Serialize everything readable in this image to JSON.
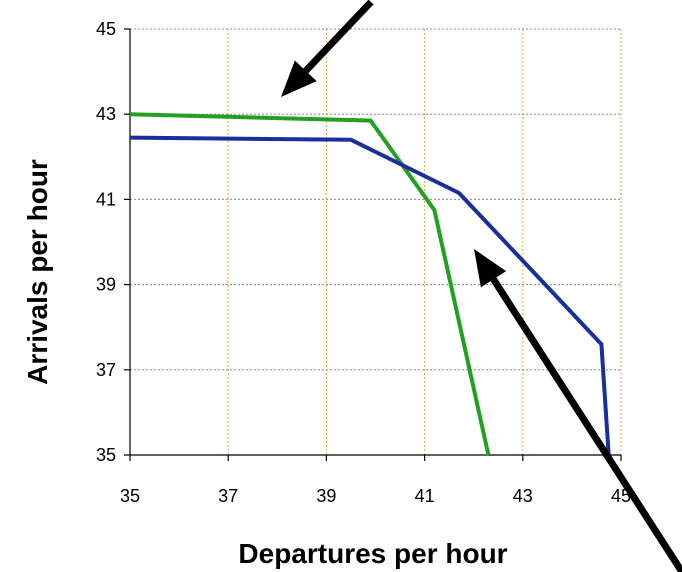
{
  "chart_data": {
    "type": "line",
    "title": "",
    "xlabel": "Departures per hour",
    "ylabel": "Arrivals per hour",
    "xlim": [
      35,
      45
    ],
    "ylim": [
      35,
      45
    ],
    "x_ticks": [
      "35",
      "37",
      "39",
      "41",
      "43",
      "45"
    ],
    "y_ticks": [
      "35",
      "37",
      "39",
      "41",
      "43",
      "45"
    ],
    "grid": true,
    "legend": "none",
    "series": [
      {
        "color": "#22a020",
        "points": [
          [
            35,
            43.0
          ],
          [
            39.9,
            42.85
          ],
          [
            41.2,
            40.75
          ],
          [
            42.3,
            35.0
          ]
        ]
      },
      {
        "color": "#1a2e9c",
        "points": [
          [
            35,
            42.45
          ],
          [
            39.5,
            42.4
          ],
          [
            41.7,
            41.15
          ],
          [
            44.6,
            37.6
          ],
          [
            44.75,
            35.0
          ]
        ]
      }
    ],
    "annotations": [
      {
        "type": "arrow",
        "color": "#000000",
        "target": [
          38.1,
          43.45
        ],
        "direction": "down-left"
      },
      {
        "type": "arrow",
        "color": "#000000",
        "target": [
          41.8,
          40.1
        ],
        "direction": "up-left"
      }
    ]
  }
}
